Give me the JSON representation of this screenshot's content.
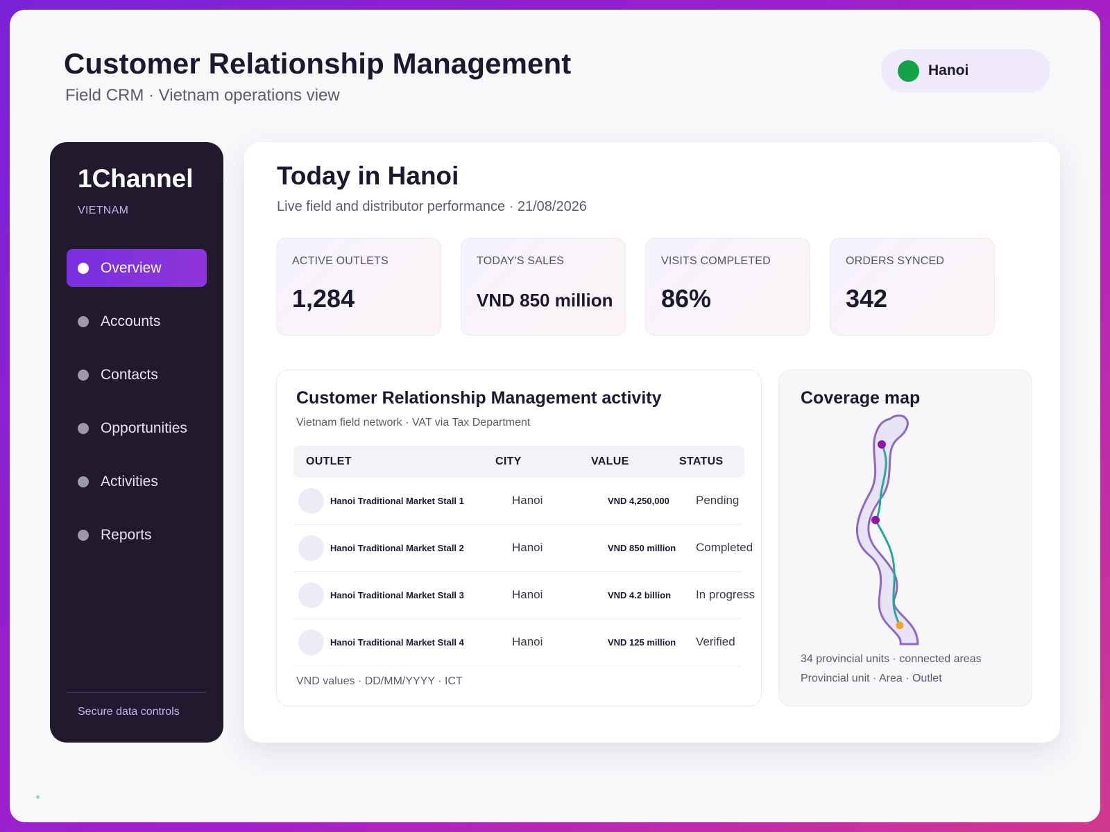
{
  "header": {
    "title": "Customer Relationship Management",
    "subtitle": "Field CRM · Vietnam operations view",
    "city_selector": {
      "label": "Hanoi",
      "status_color": "#17a24a"
    }
  },
  "sidebar": {
    "brand": "1Channel",
    "brand_sub": "VIETNAM",
    "items": [
      {
        "label": "Overview",
        "active": true
      },
      {
        "label": "Accounts",
        "active": false
      },
      {
        "label": "Contacts",
        "active": false
      },
      {
        "label": "Opportunities",
        "active": false
      },
      {
        "label": "Activities",
        "active": false
      },
      {
        "label": "Reports",
        "active": false
      }
    ],
    "footer": "Secure data controls"
  },
  "main": {
    "title": "Today in Hanoi",
    "subtitle": "Live field and distributor performance · 21/08/2026",
    "kpis": [
      {
        "label": "ACTIVE OUTLETS",
        "value": "1,284"
      },
      {
        "label": "TODAY'S SALES",
        "value": "VND 850 million"
      },
      {
        "label": "VISITS COMPLETED",
        "value": "86%"
      },
      {
        "label": "ORDERS SYNCED",
        "value": "342"
      }
    ],
    "activity": {
      "title": "Customer Relationship Management activity",
      "subtitle": "Vietnam field network · VAT via Tax Department",
      "columns": [
        "OUTLET",
        "CITY",
        "VALUE",
        "STATUS"
      ],
      "rows": [
        {
          "outlet": "Hanoi Traditional Market Stall 1",
          "city": "Hanoi",
          "value": "VND 4,250,000",
          "status": "Pending"
        },
        {
          "outlet": "Hanoi Traditional Market Stall 2",
          "city": "Hanoi",
          "value": "VND 850 million",
          "status": "Completed"
        },
        {
          "outlet": "Hanoi Traditional Market Stall 3",
          "city": "Hanoi",
          "value": "VND 4.2 billion",
          "status": "In progress"
        },
        {
          "outlet": "Hanoi Traditional Market Stall 4",
          "city": "Hanoi",
          "value": "VND 125 million",
          "status": "Verified"
        }
      ],
      "footer": "VND values · DD/MM/YYYY · ICT"
    },
    "coverage_map": {
      "title": "Coverage map",
      "stat": "34 provincial units · connected areas",
      "legend": "Provincial unit · Area · Outlet",
      "colors": {
        "land": "#e8e4f8",
        "border": "#8e68c0",
        "route": "#27a69a",
        "marker": "#8e16a6",
        "outlet": "#f0a531"
      }
    }
  }
}
